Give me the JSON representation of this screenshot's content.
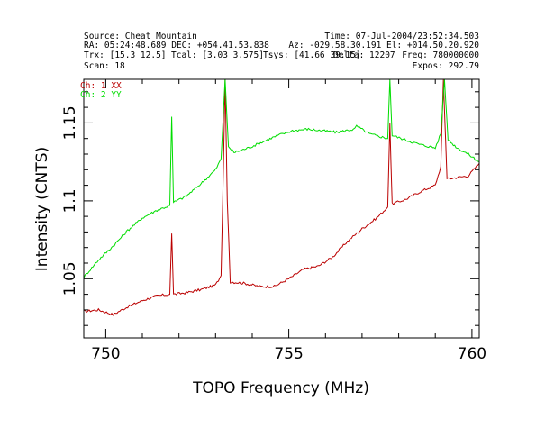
{
  "header": {
    "source": "Source: Cheat Mountain",
    "time": "Time: 07-Jul-2004/23:52:34.503",
    "radec": "RA: 05:24:48.689 DEC: +054.41.53.838",
    "azel": "Az: -029.58.30.191 El: +014.50.20.920",
    "trx": "Trx: [15.3 12.5]",
    "tcal": "Tcal: [3.03 3.575]",
    "tsys": "Tsys: [41.66 39.15]",
    "delta": "Delta: 12207",
    "freq": "Freq: 780000000",
    "scan": "Scan: 18",
    "expos": "Expos: 292.79"
  },
  "colors": {
    "ch1": "#bb0000",
    "ch2": "#00dd00",
    "frame": "#000000"
  },
  "chart_data": {
    "type": "line",
    "xlabel": "TOPO Frequency (MHz)",
    "ylabel": "Intensity (CNTS)",
    "xlim": [
      749.4,
      760.2
    ],
    "ylim": [
      1.012,
      1.178
    ],
    "x_ticks": [
      750,
      755,
      760
    ],
    "y_ticks": [
      1.05,
      1.1,
      1.15
    ],
    "x_tick_labels": [
      "750",
      "755",
      "760"
    ],
    "y_tick_labels": [
      "1.05",
      "1.1",
      "1.15"
    ],
    "legend_position": "top-left",
    "series": [
      {
        "name": "Ch: 1 XX",
        "color": "#bb0000",
        "points": [
          [
            749.4,
            1.029
          ],
          [
            749.8,
            1.03
          ],
          [
            750.2,
            1.027
          ],
          [
            750.6,
            1.032
          ],
          [
            751.0,
            1.036
          ],
          [
            751.4,
            1.039
          ],
          [
            751.75,
            1.04
          ],
          [
            751.8,
            1.079
          ],
          [
            751.85,
            1.04
          ],
          [
            752.2,
            1.041
          ],
          [
            752.6,
            1.043
          ],
          [
            753.0,
            1.046
          ],
          [
            753.15,
            1.052
          ],
          [
            753.22,
            1.13
          ],
          [
            753.26,
            1.178
          ],
          [
            753.32,
            1.1
          ],
          [
            753.4,
            1.048
          ],
          [
            753.8,
            1.047
          ],
          [
            754.2,
            1.045
          ],
          [
            754.6,
            1.045
          ],
          [
            755.0,
            1.05
          ],
          [
            755.4,
            1.056
          ],
          [
            755.8,
            1.058
          ],
          [
            756.2,
            1.064
          ],
          [
            756.6,
            1.074
          ],
          [
            757.0,
            1.082
          ],
          [
            757.4,
            1.089
          ],
          [
            757.7,
            1.096
          ],
          [
            757.76,
            1.15
          ],
          [
            757.82,
            1.098
          ],
          [
            758.2,
            1.101
          ],
          [
            758.6,
            1.106
          ],
          [
            759.0,
            1.11
          ],
          [
            759.15,
            1.122
          ],
          [
            759.22,
            1.178
          ],
          [
            759.32,
            1.114
          ],
          [
            759.6,
            1.115
          ],
          [
            759.9,
            1.116
          ],
          [
            760.2,
            1.124
          ]
        ]
      },
      {
        "name": "Ch: 2 YY",
        "color": "#00dd00",
        "points": [
          [
            749.4,
            1.051
          ],
          [
            749.8,
            1.062
          ],
          [
            750.2,
            1.071
          ],
          [
            750.6,
            1.081
          ],
          [
            751.0,
            1.089
          ],
          [
            751.4,
            1.094
          ],
          [
            751.75,
            1.097
          ],
          [
            751.8,
            1.154
          ],
          [
            751.85,
            1.099
          ],
          [
            752.2,
            1.103
          ],
          [
            752.6,
            1.111
          ],
          [
            753.0,
            1.12
          ],
          [
            753.15,
            1.127
          ],
          [
            753.22,
            1.16
          ],
          [
            753.26,
            1.178
          ],
          [
            753.35,
            1.135
          ],
          [
            753.5,
            1.131
          ],
          [
            753.9,
            1.134
          ],
          [
            754.3,
            1.138
          ],
          [
            754.7,
            1.142
          ],
          [
            755.1,
            1.145
          ],
          [
            755.5,
            1.146
          ],
          [
            755.9,
            1.145
          ],
          [
            756.3,
            1.144
          ],
          [
            756.8,
            1.146
          ],
          [
            756.85,
            1.148
          ],
          [
            757.2,
            1.143
          ],
          [
            757.7,
            1.14
          ],
          [
            757.76,
            1.178
          ],
          [
            757.82,
            1.142
          ],
          [
            758.2,
            1.139
          ],
          [
            758.6,
            1.136
          ],
          [
            759.0,
            1.134
          ],
          [
            759.15,
            1.143
          ],
          [
            759.25,
            1.178
          ],
          [
            759.35,
            1.139
          ],
          [
            759.6,
            1.134
          ],
          [
            759.9,
            1.13
          ],
          [
            760.2,
            1.125
          ]
        ]
      }
    ]
  }
}
